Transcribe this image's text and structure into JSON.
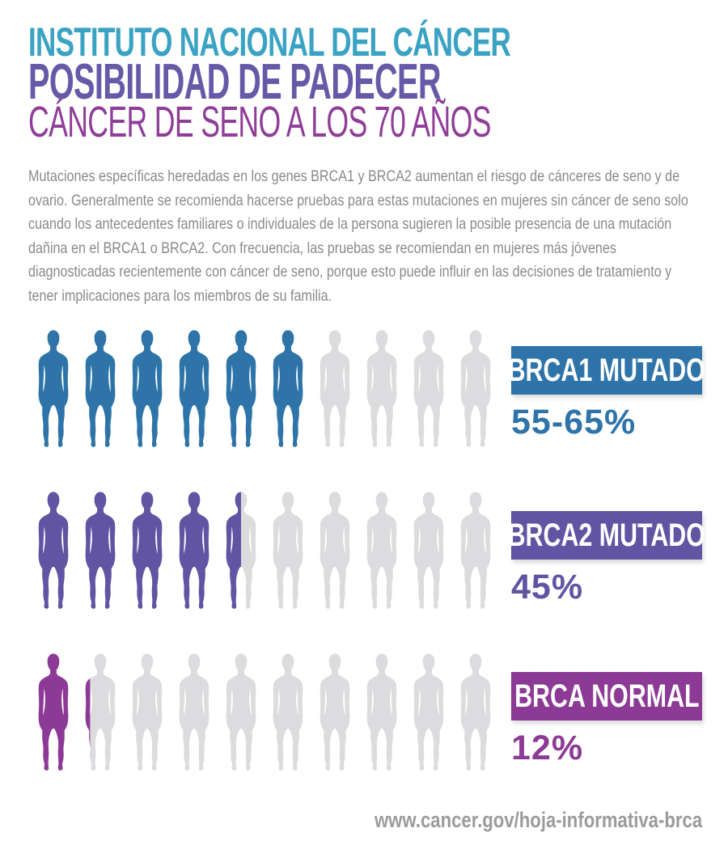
{
  "header": {
    "line1": "INSTITUTO NACIONAL DEL CÁNCER",
    "line2": "POSIBILIDAD DE PADECER",
    "line3": "CÁNCER DE SENO A LOS 70 AÑOS",
    "line1_color": "#3AA3C3",
    "line2_color": "#665AA8",
    "line3_color": "#8F3E98"
  },
  "intro": {
    "text": "Mutaciones específicas heredadas en los genes BRCA1 y BRCA2 aumentan el riesgo de cánceres de seno y de ovario. Generalmente se recomienda hacerse pruebas para estas mutaciones en mujeres sin cáncer de seno solo cuando los antecedentes familiares o individuales de la persona sugieren la posible presencia de una mutación dañina en el BRCA1 o BRCA2. Con frecuencia, las pruebas se recomiendan en mujeres más jóvenes diagnosticadas recientemente con cáncer de seno, porque esto puede influir en las decisiones de tratamiento y tener implicaciones para los miembros de su familia.",
    "text_color": "#8A8A8A"
  },
  "chart_data": {
    "type": "pictogram",
    "figures_per_row": 10,
    "empty_color": "#DCDCDE",
    "rows": [
      {
        "label": "BRCA1 MUTADO",
        "value_label": "55-65%",
        "value_pct_range": [
          55,
          65
        ],
        "figures_filled": 6.0,
        "color": "#2E74A8"
      },
      {
        "label": "BRCA2 MUTADO",
        "value_label": "45%",
        "value_pct_range": [
          45,
          45
        ],
        "figures_filled": 4.5,
        "color": "#6054A3"
      },
      {
        "label": "BRCA NORMAL",
        "value_label": "12%",
        "value_pct_range": [
          12,
          12
        ],
        "figures_filled": 1.2,
        "color": "#8C3A96"
      }
    ]
  },
  "footer": {
    "url": "www.cancer.gov/hoja-informativa-brca",
    "color": "#9B9B9B"
  }
}
